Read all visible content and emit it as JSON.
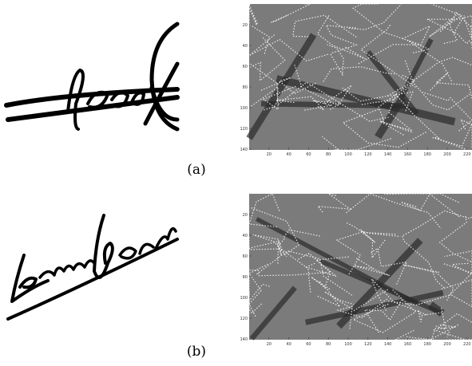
{
  "panels": [
    {
      "label": "(a)",
      "xticks": [
        20,
        40,
        60,
        80,
        100,
        120,
        140,
        160,
        180,
        200,
        220
      ],
      "yticks": [
        20,
        40,
        60,
        80,
        100,
        120,
        140
      ]
    },
    {
      "label": "(b)",
      "xticks": [
        20,
        40,
        60,
        80,
        100,
        120,
        140,
        160,
        180,
        200,
        220
      ],
      "yticks": [
        20,
        40,
        60,
        80,
        100,
        120,
        140
      ]
    }
  ]
}
